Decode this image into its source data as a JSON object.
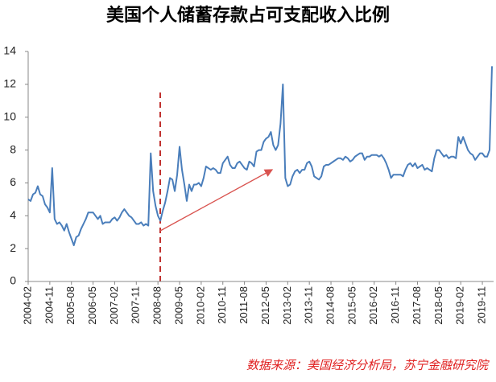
{
  "chart_data": {
    "type": "line",
    "title": "美国个人储蓄存款占可支配收入比例",
    "source": "数据来源：美国经济分析局，苏宁金融研究院",
    "categories": [
      "2004-02",
      null,
      null,
      null,
      null,
      null,
      null,
      null,
      null,
      "2004-11",
      null,
      null,
      null,
      null,
      null,
      null,
      null,
      null,
      "2005-08",
      null,
      null,
      null,
      null,
      null,
      null,
      null,
      null,
      "2006-05",
      null,
      null,
      null,
      null,
      null,
      null,
      null,
      null,
      "2007-02",
      null,
      null,
      null,
      null,
      null,
      null,
      null,
      null,
      "2007-11",
      null,
      null,
      null,
      null,
      null,
      null,
      null,
      null,
      "2008-08",
      null,
      null,
      null,
      null,
      null,
      null,
      null,
      null,
      "2009-05",
      null,
      null,
      null,
      null,
      null,
      null,
      null,
      null,
      "2010-02",
      null,
      null,
      null,
      null,
      null,
      null,
      null,
      null,
      "2010-11",
      null,
      null,
      null,
      null,
      null,
      null,
      null,
      null,
      "2011-08",
      null,
      null,
      null,
      null,
      null,
      null,
      null,
      null,
      "2012-05",
      null,
      null,
      null,
      null,
      null,
      null,
      null,
      null,
      "2013-02",
      null,
      null,
      null,
      null,
      null,
      null,
      null,
      null,
      "2013-11",
      null,
      null,
      null,
      null,
      null,
      null,
      null,
      null,
      "2014-08",
      null,
      null,
      null,
      null,
      null,
      null,
      null,
      null,
      "2015-05",
      null,
      null,
      null,
      null,
      null,
      null,
      null,
      null,
      "2016-02",
      null,
      null,
      null,
      null,
      null,
      null,
      null,
      null,
      "2016-11",
      null,
      null,
      null,
      null,
      null,
      null,
      null,
      null,
      "2017-08",
      null,
      null,
      null,
      null,
      null,
      null,
      null,
      null,
      "2018-05",
      null,
      null,
      null,
      null,
      null,
      null,
      null,
      null,
      "2019-02",
      null,
      null,
      null,
      null,
      null,
      null,
      null,
      null,
      "2019-11",
      null,
      null,
      null,
      null
    ],
    "values": [
      5.0,
      4.9,
      5.3,
      5.4,
      5.8,
      5.3,
      5.2,
      4.7,
      4.5,
      4.2,
      6.9,
      3.8,
      3.5,
      3.6,
      3.4,
      3.1,
      3.5,
      3.0,
      2.6,
      2.2,
      2.7,
      2.8,
      3.2,
      3.5,
      3.8,
      4.2,
      4.2,
      4.2,
      4.0,
      3.8,
      4.0,
      3.5,
      3.6,
      3.6,
      3.6,
      3.8,
      3.9,
      3.7,
      3.9,
      4.2,
      4.4,
      4.2,
      4.0,
      3.9,
      3.7,
      3.5,
      3.5,
      3.6,
      3.4,
      3.5,
      3.4,
      7.8,
      5.5,
      4.6,
      4.0,
      3.7,
      4.3,
      4.8,
      5.5,
      6.3,
      6.2,
      5.5,
      6.5,
      8.2,
      6.8,
      5.9,
      4.9,
      5.9,
      5.5,
      5.9,
      5.9,
      6.0,
      5.8,
      6.3,
      7.0,
      6.9,
      6.8,
      6.9,
      6.8,
      6.6,
      6.6,
      7.2,
      7.4,
      7.6,
      7.1,
      6.9,
      6.9,
      7.2,
      7.3,
      7.1,
      6.9,
      6.8,
      7.3,
      7.2,
      7.0,
      7.9,
      8.0,
      8.0,
      8.5,
      8.7,
      8.8,
      9.1,
      8.3,
      8.0,
      8.3,
      9.6,
      12.0,
      6.3,
      5.8,
      5.9,
      6.4,
      6.7,
      6.8,
      6.6,
      6.8,
      6.8,
      7.2,
      7.3,
      7.0,
      6.4,
      6.3,
      6.2,
      6.4,
      7.0,
      7.1,
      7.1,
      7.2,
      7.3,
      7.4,
      7.5,
      7.5,
      7.4,
      7.6,
      7.5,
      7.3,
      7.4,
      7.6,
      7.7,
      7.8,
      7.8,
      7.4,
      7.6,
      7.6,
      7.7,
      7.7,
      7.7,
      7.6,
      7.7,
      7.5,
      7.2,
      6.8,
      6.3,
      6.5,
      6.5,
      6.5,
      6.5,
      6.4,
      6.8,
      7.1,
      7.2,
      7.0,
      7.2,
      6.9,
      7.0,
      7.1,
      6.8,
      6.9,
      6.8,
      6.7,
      7.5,
      8.0,
      8.0,
      7.8,
      7.6,
      7.7,
      7.5,
      7.6,
      7.6,
      7.5,
      8.8,
      8.4,
      8.8,
      8.4,
      8.0,
      7.8,
      7.7,
      7.4,
      7.6,
      7.8,
      7.8,
      7.6,
      7.6,
      8.0,
      13.1
    ],
    "color": "#4a7ebb",
    "ylim": [
      0,
      14
    ],
    "yticks": [
      0,
      2,
      4,
      6,
      8,
      10,
      12,
      14
    ],
    "grid": false
  }
}
